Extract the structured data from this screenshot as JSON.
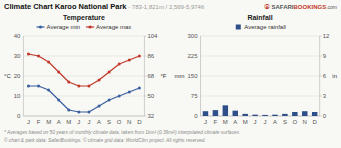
{
  "title": "Climate Chart Karoo National Park",
  "subtitle": " - 783-1,821m / 2,569-5,974ft",
  "annotations": [
    "⦿",
    "SAFARI",
    "BOOKINGS",
    ".com",
    "* Averages based on 50 years of monthly climate data, taken from 1km² (0.39mi²) interpolated climate surfaces.",
    "© chart & park data: SafariBookings. © climate grid data: WorldClim project. All rights reserved."
  ],
  "chart_data": [
    {
      "type": "line",
      "title": "Temperature",
      "categories": [
        "J",
        "F",
        "M",
        "A",
        "M",
        "J",
        "J",
        "A",
        "S",
        "O",
        "N",
        "D"
      ],
      "series": [
        {
          "name": "Average min",
          "color": "#3a5fa0",
          "marker": "circle",
          "values": [
            15,
            15,
            13,
            8,
            3,
            2,
            2,
            5,
            8,
            10,
            12,
            14
          ]
        },
        {
          "name": "Average max",
          "color": "#c0392b",
          "marker": "circle",
          "values": [
            31,
            30,
            27,
            22,
            17,
            15,
            15,
            18,
            22,
            26,
            28,
            30
          ]
        }
      ],
      "y_label": "°C",
      "y2_label": "°F",
      "ylim": [
        0,
        40
      ],
      "yticks": [
        0,
        10,
        20,
        30,
        40
      ],
      "y2lim": [
        32,
        104
      ],
      "y2ticks": [
        32,
        50,
        68,
        86,
        104
      ],
      "grid": true,
      "legend": "top"
    },
    {
      "type": "bar",
      "title": "Rainfall",
      "categories": [
        "J",
        "F",
        "M",
        "A",
        "M",
        "J",
        "J",
        "A",
        "S",
        "O",
        "N",
        "D"
      ],
      "series": [
        {
          "name": "Average rainfall",
          "color": "#2e4f8a",
          "values": [
            18,
            22,
            40,
            20,
            8,
            5,
            4,
            5,
            8,
            15,
            18,
            15
          ]
        }
      ],
      "y_label": "mm",
      "y2_label": "in",
      "ylim": [
        0,
        300
      ],
      "yticks": [
        0,
        75,
        150,
        225,
        300
      ],
      "y2lim": [
        0,
        12
      ],
      "y2ticks": [
        0,
        3,
        6,
        9,
        12
      ],
      "grid": true,
      "legend": "top"
    }
  ]
}
